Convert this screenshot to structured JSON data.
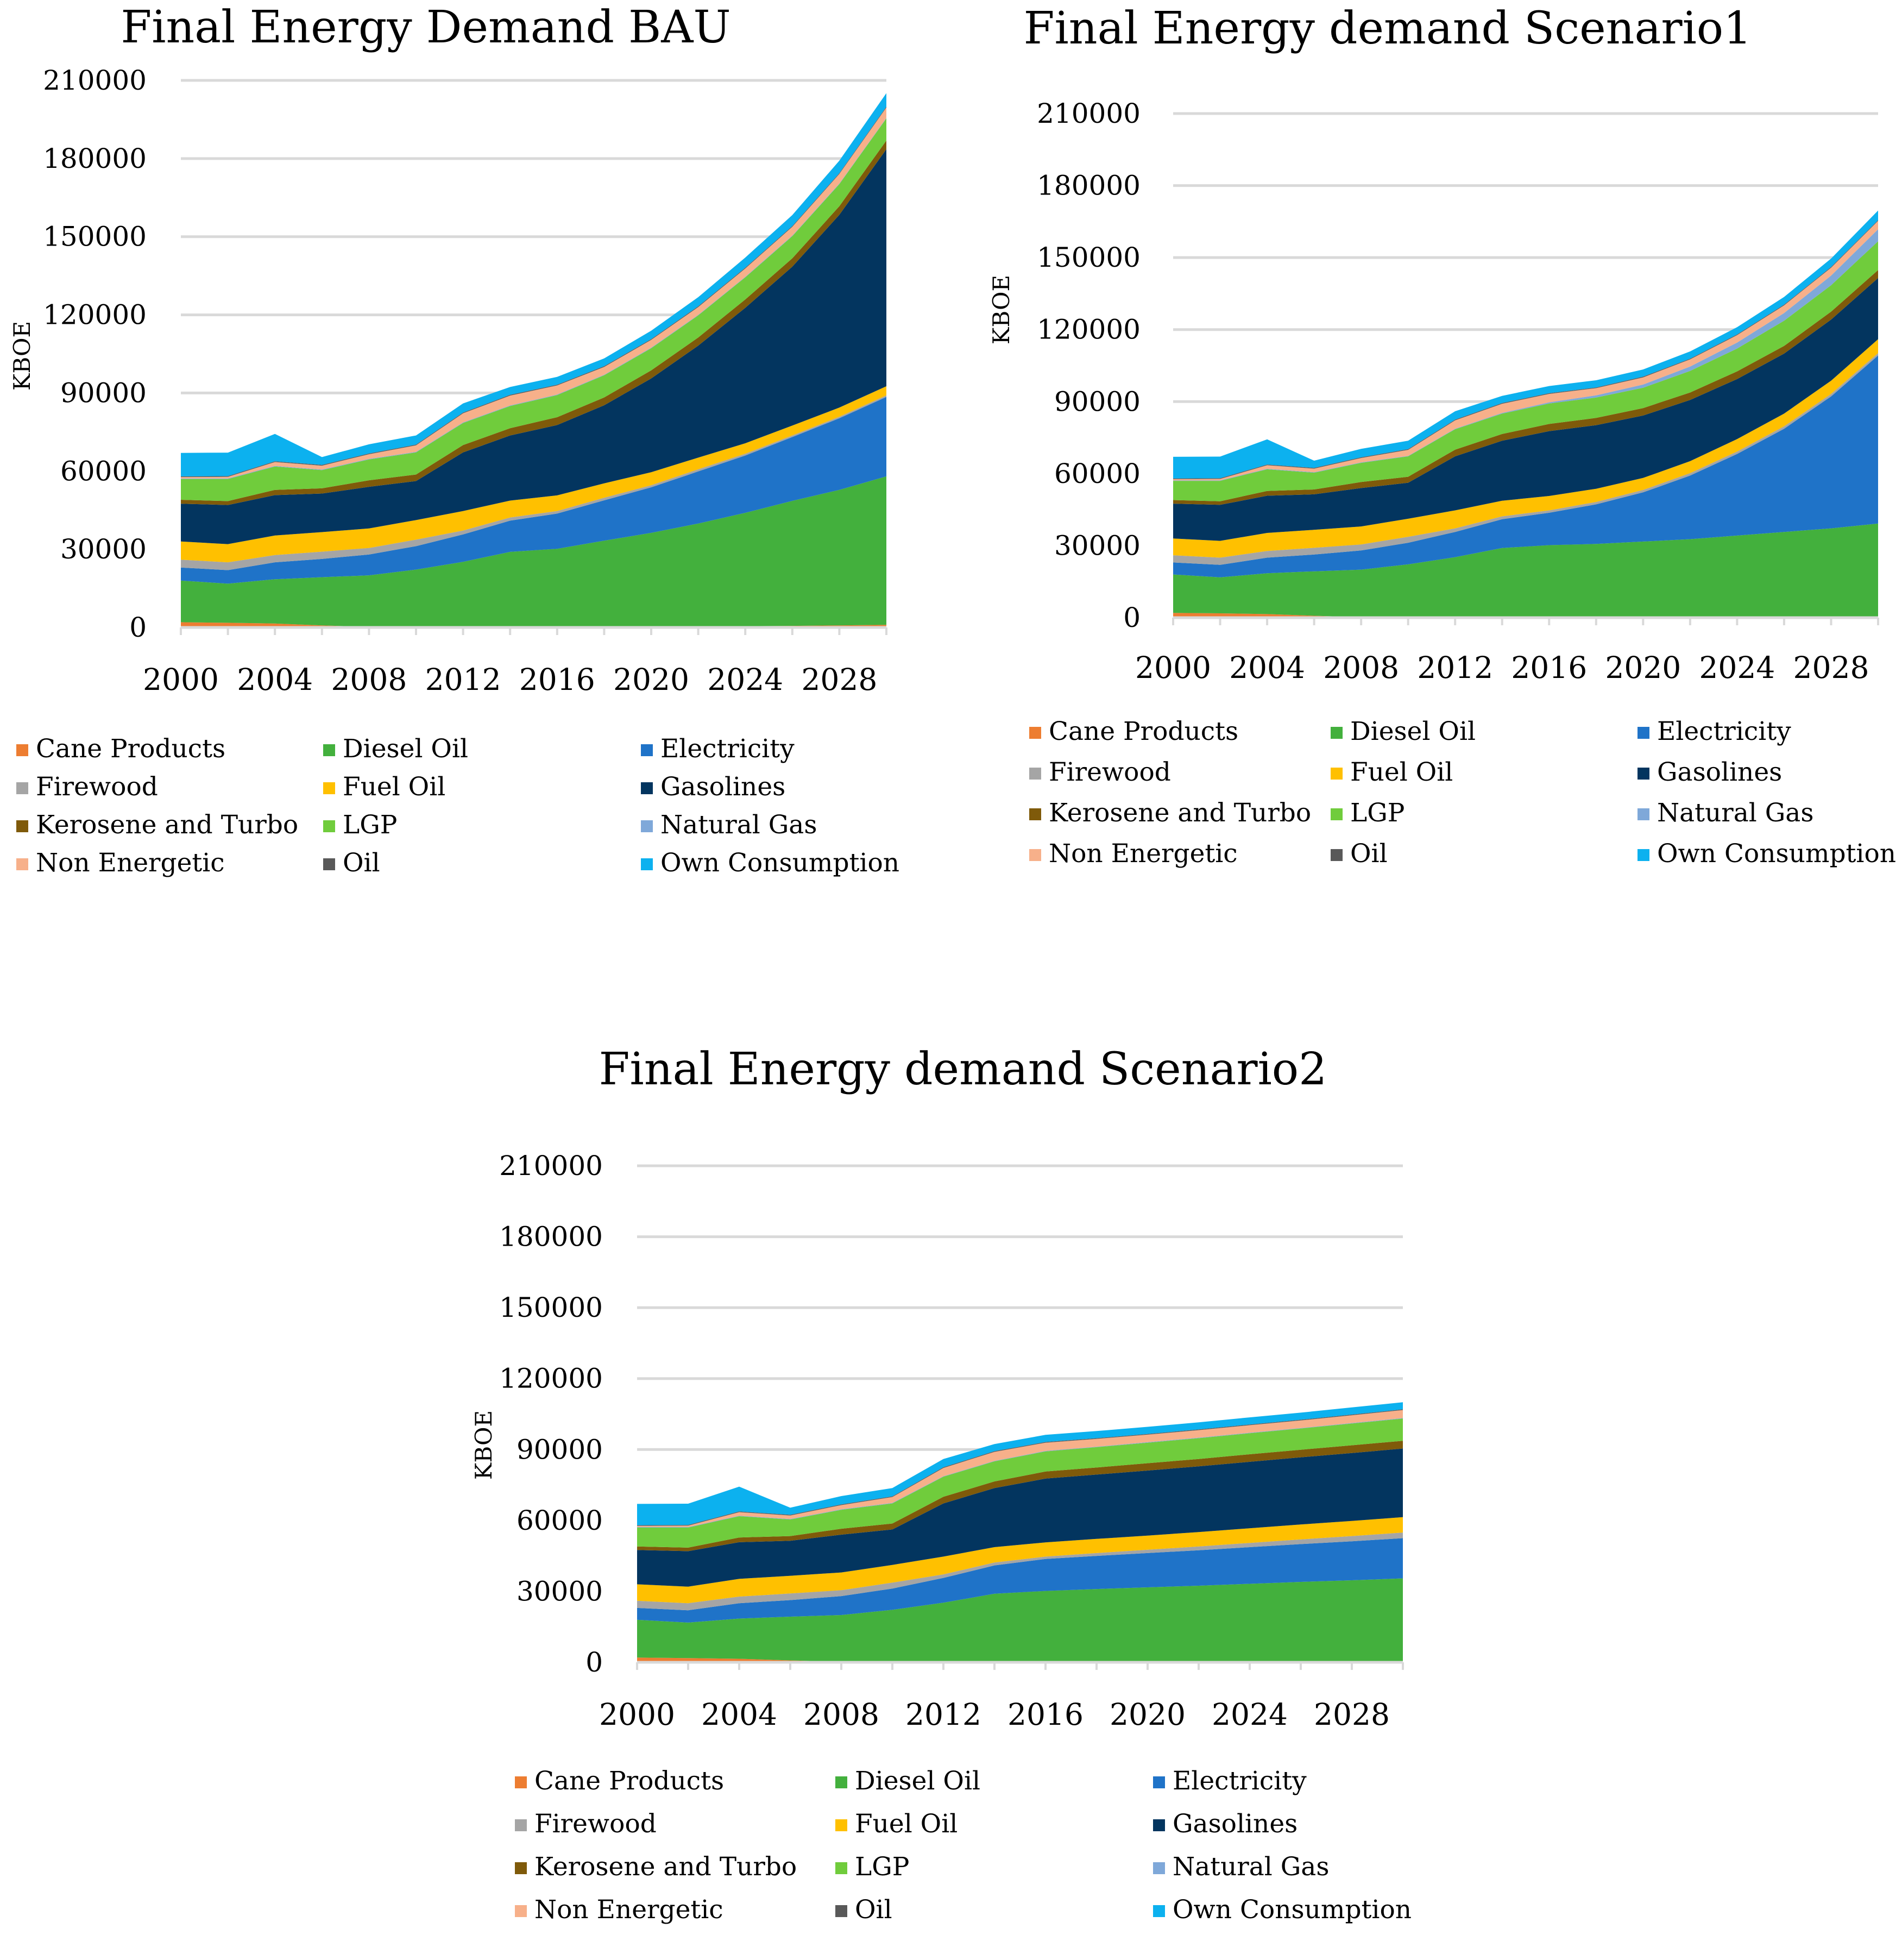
{
  "legend_labels": [
    "Cane Products",
    "Diesel Oil",
    "Electricity",
    "Firewood",
    "Fuel Oil",
    "Gasolines",
    "Kerosene and Turbo",
    "LGP",
    "Natural Gas",
    "Non Energetic",
    "Oil",
    "Own Consumption"
  ],
  "colors": {
    "Cane Products": "#ED7D31",
    "Diesel Oil": "#43B03D",
    "Electricity": "#1F73C8",
    "Firewood": "#A5A5A5",
    "Fuel Oil": "#FFC000",
    "Gasolines": "#03355F",
    "Kerosene and Turbo": "#7F5A0A",
    "LGP": "#70CC3C",
    "Natural Gas": "#7FA8D9",
    "Non Energetic": "#F7B08A",
    "Oil": "#595959",
    "Own Consumption": "#0CB1EF"
  },
  "chart_data": [
    {
      "type": "area",
      "stacked": true,
      "title": "Final Energy Demand BAU",
      "ylabel": "KBOE",
      "xlabel": "",
      "ylim": [
        0,
        210000
      ],
      "yticks": [
        "0",
        "30000",
        "60000",
        "90000",
        "120000",
        "150000",
        "180000",
        "210000"
      ],
      "xtick_labels": [
        "2000",
        "2004",
        "2008",
        "2012",
        "2016",
        "2020",
        "2024",
        "2028"
      ],
      "x": [
        2000,
        2002,
        2004,
        2006,
        2008,
        2010,
        2012,
        2014,
        2016,
        2018,
        2020,
        2022,
        2024,
        2026,
        2028,
        2030
      ],
      "series": [
        {
          "name": "Cane Products",
          "values": [
            2000,
            1800,
            1500,
            800,
            200,
            200,
            200,
            200,
            200,
            300,
            300,
            400,
            500,
            600,
            800,
            1000
          ]
        },
        {
          "name": "Diesel Oil",
          "values": [
            16000,
            15000,
            17000,
            18500,
            19800,
            22000,
            25000,
            28800,
            30000,
            33000,
            36000,
            39500,
            43500,
            48000,
            52000,
            57000
          ]
        },
        {
          "name": "Electricity",
          "values": [
            5000,
            5200,
            6500,
            7000,
            8000,
            9000,
            10500,
            12000,
            13500,
            15500,
            17500,
            20000,
            22000,
            24500,
            27500,
            30500
          ]
        },
        {
          "name": "Firewood",
          "values": [
            3000,
            3000,
            2800,
            2800,
            2500,
            2500,
            1500,
            1200,
            1000,
            1000,
            800,
            800,
            700,
            600,
            600,
            600
          ]
        },
        {
          "name": "Fuel Oil",
          "values": [
            7000,
            7000,
            7500,
            7500,
            7500,
            7500,
            7500,
            6500,
            6000,
            5500,
            5000,
            4500,
            4000,
            3800,
            3500,
            3500
          ]
        },
        {
          "name": "Gasolines",
          "values": [
            14500,
            15000,
            15500,
            14800,
            16000,
            15000,
            22500,
            25000,
            27000,
            30000,
            36000,
            43000,
            52000,
            61000,
            74000,
            91000
          ]
        },
        {
          "name": "Kerosene and Turbo",
          "values": [
            1500,
            1500,
            2000,
            2000,
            2500,
            2500,
            2800,
            2800,
            3000,
            3000,
            3100,
            3100,
            3200,
            3200,
            3300,
            3300
          ]
        },
        {
          "name": "LGP",
          "values": [
            8000,
            8500,
            9000,
            7000,
            8000,
            8500,
            8500,
            8500,
            8500,
            8500,
            8500,
            8500,
            8500,
            8500,
            8500,
            8500
          ]
        },
        {
          "name": "Natural Gas",
          "values": [
            200,
            200,
            200,
            200,
            200,
            200,
            200,
            200,
            200,
            200,
            200,
            200,
            200,
            200,
            200,
            200
          ]
        },
        {
          "name": "Non Energetic",
          "values": [
            500,
            600,
            1500,
            1500,
            1800,
            2500,
            3500,
            3800,
            3500,
            3000,
            3000,
            3000,
            3200,
            3400,
            3700,
            4000
          ]
        },
        {
          "name": "Oil",
          "values": [
            300,
            300,
            300,
            300,
            300,
            300,
            300,
            300,
            300,
            300,
            300,
            300,
            300,
            300,
            300,
            300
          ]
        },
        {
          "name": "Own Consumption",
          "values": [
            9000,
            9000,
            10500,
            3000,
            3500,
            3500,
            3500,
            3000,
            3000,
            3000,
            3200,
            3500,
            3900,
            4200,
            4800,
            5200
          ]
        }
      ]
    },
    {
      "type": "area",
      "stacked": true,
      "title": "Final Energy demand Scenario1",
      "ylabel": "KBOE",
      "xlabel": "",
      "ylim": [
        0,
        210000
      ],
      "yticks": [
        "0",
        "30000",
        "60000",
        "90000",
        "120000",
        "150000",
        "180000",
        "210000"
      ],
      "xtick_labels": [
        "2000",
        "2004",
        "2008",
        "2012",
        "2016",
        "2020",
        "2024",
        "2028"
      ],
      "x": [
        2000,
        2002,
        2004,
        2006,
        2008,
        2010,
        2012,
        2014,
        2016,
        2018,
        2020,
        2022,
        2024,
        2026,
        2028,
        2030
      ],
      "series": [
        {
          "name": "Cane Products",
          "values": [
            2000,
            1800,
            1500,
            800,
            200,
            200,
            200,
            200,
            200,
            200,
            200,
            200,
            200,
            200,
            200,
            200
          ]
        },
        {
          "name": "Diesel Oil",
          "values": [
            16000,
            15000,
            17000,
            18500,
            19800,
            22000,
            25000,
            28800,
            30000,
            30500,
            31500,
            32500,
            34000,
            35500,
            37000,
            39000
          ]
        },
        {
          "name": "Electricity",
          "values": [
            5000,
            5200,
            6500,
            7000,
            8000,
            9000,
            10500,
            12000,
            13500,
            16500,
            20500,
            26500,
            34000,
            43000,
            55000,
            70000
          ]
        },
        {
          "name": "Firewood",
          "values": [
            3000,
            3000,
            2800,
            2800,
            2500,
            2500,
            1500,
            1200,
            1000,
            1000,
            1000,
            1000,
            1000,
            1000,
            1000,
            1000
          ]
        },
        {
          "name": "Fuel Oil",
          "values": [
            7000,
            7000,
            7500,
            7500,
            7500,
            7500,
            7500,
            6500,
            6000,
            5500,
            5000,
            5000,
            5200,
            5300,
            5500,
            5800
          ]
        },
        {
          "name": "Gasolines",
          "values": [
            14500,
            15000,
            15500,
            14800,
            16000,
            15000,
            22500,
            25000,
            27000,
            26500,
            26000,
            25500,
            25000,
            25000,
            25500,
            25500
          ]
        },
        {
          "name": "Kerosene and Turbo",
          "values": [
            1500,
            1500,
            2000,
            2000,
            2500,
            2500,
            2800,
            2800,
            3000,
            3000,
            3100,
            3100,
            3200,
            3200,
            3300,
            3300
          ]
        },
        {
          "name": "LGP",
          "values": [
            8000,
            8500,
            9000,
            7000,
            8000,
            8500,
            8500,
            8500,
            8500,
            8500,
            8500,
            9000,
            9500,
            10500,
            11000,
            12000
          ]
        },
        {
          "name": "Natural Gas",
          "values": [
            200,
            200,
            200,
            200,
            200,
            200,
            200,
            300,
            500,
            900,
            1300,
            1800,
            2500,
            3200,
            4000,
            5000
          ]
        },
        {
          "name": "Non Energetic",
          "values": [
            500,
            600,
            1500,
            1500,
            1800,
            2500,
            3500,
            3800,
            3500,
            3000,
            3000,
            3000,
            3100,
            3200,
            3300,
            3500
          ]
        },
        {
          "name": "Oil",
          "values": [
            300,
            300,
            300,
            300,
            300,
            300,
            300,
            300,
            300,
            300,
            300,
            300,
            300,
            300,
            300,
            300
          ]
        },
        {
          "name": "Own Consumption",
          "values": [
            9000,
            9000,
            10500,
            3000,
            3500,
            3500,
            3500,
            3000,
            3000,
            3000,
            3000,
            3000,
            3000,
            3200,
            3500,
            4000
          ]
        }
      ]
    },
    {
      "type": "area",
      "stacked": true,
      "title": "Final Energy demand Scenario2",
      "ylabel": "KBOE",
      "xlabel": "",
      "ylim": [
        0,
        210000
      ],
      "yticks": [
        "0",
        "30000",
        "60000",
        "90000",
        "120000",
        "150000",
        "180000",
        "210000"
      ],
      "xtick_labels": [
        "2000",
        "2004",
        "2008",
        "2012",
        "2016",
        "2020",
        "2024",
        "2028"
      ],
      "x": [
        2000,
        2002,
        2004,
        2006,
        2008,
        2010,
        2012,
        2014,
        2016,
        2018,
        2020,
        2022,
        2024,
        2026,
        2028,
        2030
      ],
      "series": [
        {
          "name": "Cane Products",
          "values": [
            2000,
            1800,
            1500,
            800,
            200,
            200,
            200,
            200,
            200,
            200,
            200,
            200,
            200,
            200,
            200,
            200
          ]
        },
        {
          "name": "Diesel Oil",
          "values": [
            16000,
            15000,
            17000,
            18500,
            19800,
            22000,
            25000,
            28800,
            30000,
            30800,
            31500,
            32200,
            33000,
            33800,
            34500,
            35300
          ]
        },
        {
          "name": "Electricity",
          "values": [
            5000,
            5200,
            6500,
            7000,
            8000,
            9000,
            10500,
            12000,
            13500,
            14000,
            14500,
            15000,
            15500,
            16000,
            16500,
            17000
          ]
        },
        {
          "name": "Firewood",
          "values": [
            3000,
            3000,
            2800,
            2800,
            2500,
            2500,
            1500,
            1200,
            1000,
            1200,
            1400,
            1600,
            1800,
            2000,
            2200,
            2400
          ]
        },
        {
          "name": "Fuel Oil",
          "values": [
            7000,
            7000,
            7500,
            7500,
            7500,
            7500,
            7500,
            6500,
            6000,
            6000,
            6000,
            6100,
            6200,
            6300,
            6400,
            6500
          ]
        },
        {
          "name": "Gasolines",
          "values": [
            14500,
            15000,
            15500,
            14800,
            16000,
            15000,
            22500,
            25000,
            27000,
            27200,
            27500,
            27800,
            28100,
            28400,
            28700,
            29000
          ]
        },
        {
          "name": "Kerosene and Turbo",
          "values": [
            1500,
            1500,
            2000,
            2000,
            2500,
            2500,
            2800,
            2800,
            3000,
            3000,
            3100,
            3100,
            3200,
            3200,
            3300,
            3300
          ]
        },
        {
          "name": "LGP",
          "values": [
            8000,
            8500,
            9000,
            7000,
            8000,
            8500,
            8500,
            8500,
            8500,
            8600,
            8700,
            8800,
            8900,
            9000,
            9200,
            9400
          ]
        },
        {
          "name": "Natural Gas",
          "values": [
            200,
            200,
            200,
            200,
            200,
            200,
            200,
            200,
            200,
            200,
            200,
            200,
            200,
            200,
            200,
            200
          ]
        },
        {
          "name": "Non Energetic",
          "values": [
            500,
            600,
            1500,
            1500,
            1800,
            2500,
            3500,
            3800,
            3500,
            3300,
            3200,
            3200,
            3200,
            3200,
            3300,
            3400
          ]
        },
        {
          "name": "Oil",
          "values": [
            300,
            300,
            300,
            300,
            300,
            300,
            300,
            300,
            300,
            300,
            300,
            300,
            300,
            300,
            300,
            300
          ]
        },
        {
          "name": "Own Consumption",
          "values": [
            9000,
            9000,
            10500,
            3000,
            3500,
            3500,
            3500,
            3000,
            3000,
            3000,
            3000,
            3000,
            3000,
            3000,
            3000,
            3000
          ]
        }
      ]
    }
  ]
}
